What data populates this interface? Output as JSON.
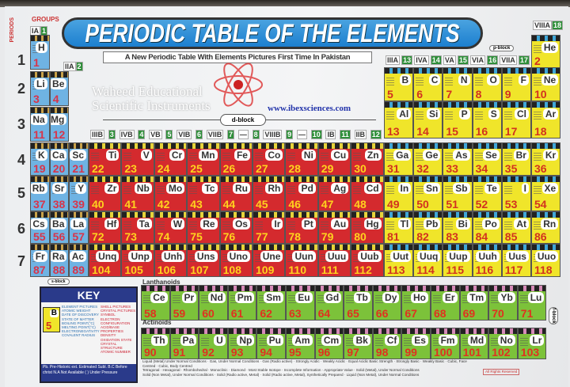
{
  "title": "PERIODIC TABLE OF THE ELEMENTS",
  "subtitle": "A New Periodic Table With Elements Pictures First Time In Pakistan",
  "watermark": [
    "Waheed Educational",
    "Scientific Instruments"
  ],
  "url": "www.ibexsciences.com",
  "labels": {
    "periods": "PERIODS",
    "groups": "GROUPS",
    "d_block": "d-block",
    "p_block": "p-block",
    "s_block": "s-block",
    "f_block": "f-block",
    "lanthanoids": "Lanthanoids",
    "actinoids": "Actinoids"
  },
  "period_numbers": [
    "1",
    "2",
    "3",
    "4",
    "5",
    "6",
    "7"
  ],
  "group_headers_left": [
    {
      "roman": "IA",
      "num": "1"
    },
    {
      "roman": "IIA",
      "num": "2"
    }
  ],
  "group_headers_d": [
    "IIIB",
    "3",
    "IVB",
    "4",
    "VB",
    "5",
    "VIB",
    "6",
    "VIIB",
    "7",
    "—",
    "8",
    "VIIIB",
    "9",
    "—",
    "10",
    "IB",
    "11",
    "IIB",
    "12"
  ],
  "group_headers_p": [
    "IIIA",
    "13",
    "IVA",
    "14",
    "VA",
    "15",
    "VIA",
    "16",
    "VIIA",
    "17"
  ],
  "group_header_noble": {
    "roman": "VIIIA",
    "num": "18"
  },
  "s_block": [
    [
      {
        "s": "H",
        "n": 1
      }
    ],
    [
      {
        "s": "Li",
        "n": 3
      },
      {
        "s": "Be",
        "n": 4
      }
    ],
    [
      {
        "s": "Na",
        "n": 11
      },
      {
        "s": "Mg",
        "n": 12
      }
    ],
    [
      {
        "s": "K",
        "n": 19
      },
      {
        "s": "Ca",
        "n": 20
      },
      {
        "s": "Sc",
        "n": 21
      }
    ],
    [
      {
        "s": "Rb",
        "n": 37
      },
      {
        "s": "Sr",
        "n": 38
      },
      {
        "s": "Y",
        "n": 39
      }
    ],
    [
      {
        "s": "Cs",
        "n": 55
      },
      {
        "s": "Ba",
        "n": 56
      },
      {
        "s": "La",
        "n": 57
      }
    ],
    [
      {
        "s": "Fr",
        "n": 87
      },
      {
        "s": "Ra",
        "n": 88
      },
      {
        "s": "Ac",
        "n": 89
      }
    ]
  ],
  "d_block": [
    [
      {
        "s": "Ti",
        "n": 22
      },
      {
        "s": "V",
        "n": 23
      },
      {
        "s": "Cr",
        "n": 24
      },
      {
        "s": "Mn",
        "n": 25
      },
      {
        "s": "Fe",
        "n": 26
      },
      {
        "s": "Co",
        "n": 27
      },
      {
        "s": "Ni",
        "n": 28
      },
      {
        "s": "Cu",
        "n": 29
      },
      {
        "s": "Zn",
        "n": 30
      }
    ],
    [
      {
        "s": "Zr",
        "n": 40
      },
      {
        "s": "Nb",
        "n": 41
      },
      {
        "s": "Mo",
        "n": 42
      },
      {
        "s": "Tc",
        "n": 43
      },
      {
        "s": "Ru",
        "n": 44
      },
      {
        "s": "Rh",
        "n": 45
      },
      {
        "s": "Pd",
        "n": 46
      },
      {
        "s": "Ag",
        "n": 47
      },
      {
        "s": "Cd",
        "n": 48
      }
    ],
    [
      {
        "s": "Hf",
        "n": 72
      },
      {
        "s": "Ta",
        "n": 73
      },
      {
        "s": "W",
        "n": 74
      },
      {
        "s": "Re",
        "n": 75
      },
      {
        "s": "Os",
        "n": 76
      },
      {
        "s": "Ir",
        "n": 77
      },
      {
        "s": "Pt",
        "n": 78
      },
      {
        "s": "Au",
        "n": 79
      },
      {
        "s": "Hg",
        "n": 80
      }
    ],
    [
      {
        "s": "Unq",
        "n": 104
      },
      {
        "s": "Unp",
        "n": 105
      },
      {
        "s": "Unh",
        "n": 106
      },
      {
        "s": "Uns",
        "n": 107
      },
      {
        "s": "Uno",
        "n": 108
      },
      {
        "s": "Une",
        "n": 109
      },
      {
        "s": "Uun",
        "n": 110
      },
      {
        "s": "Uuu",
        "n": 111
      },
      {
        "s": "Uub",
        "n": 112
      }
    ]
  ],
  "p_block": [
    [
      {
        "s": "He",
        "n": 2
      }
    ],
    [
      {
        "s": "B",
        "n": 5
      },
      {
        "s": "C",
        "n": 6
      },
      {
        "s": "N",
        "n": 7
      },
      {
        "s": "O",
        "n": 8
      },
      {
        "s": "F",
        "n": 9
      },
      {
        "s": "Ne",
        "n": 10
      }
    ],
    [
      {
        "s": "Al",
        "n": 13
      },
      {
        "s": "Si",
        "n": 14
      },
      {
        "s": "P",
        "n": 15
      },
      {
        "s": "S",
        "n": 16
      },
      {
        "s": "Cl",
        "n": 17
      },
      {
        "s": "Ar",
        "n": 18
      }
    ],
    [
      {
        "s": "Ga",
        "n": 31
      },
      {
        "s": "Ge",
        "n": 32
      },
      {
        "s": "As",
        "n": 33
      },
      {
        "s": "Se",
        "n": 34
      },
      {
        "s": "Br",
        "n": 35
      },
      {
        "s": "Kr",
        "n": 36
      }
    ],
    [
      {
        "s": "In",
        "n": 49
      },
      {
        "s": "Sn",
        "n": 50
      },
      {
        "s": "Sb",
        "n": 51
      },
      {
        "s": "Te",
        "n": 52
      },
      {
        "s": "I",
        "n": 53
      },
      {
        "s": "Xe",
        "n": 54
      }
    ],
    [
      {
        "s": "Tl",
        "n": 81
      },
      {
        "s": "Pb",
        "n": 82
      },
      {
        "s": "Bi",
        "n": 83
      },
      {
        "s": "Po",
        "n": 84
      },
      {
        "s": "At",
        "n": 85
      },
      {
        "s": "Rn",
        "n": 86
      }
    ],
    [
      {
        "s": "Uut",
        "n": 113
      },
      {
        "s": "Uuq",
        "n": 114
      },
      {
        "s": "Uup",
        "n": 115
      },
      {
        "s": "Uuh",
        "n": 116
      },
      {
        "s": "Uus",
        "n": 117
      },
      {
        "s": "Uuo",
        "n": 118
      }
    ]
  ],
  "f_block": [
    [
      {
        "s": "Ce",
        "n": 58
      },
      {
        "s": "Pr",
        "n": 59
      },
      {
        "s": "Nd",
        "n": 60
      },
      {
        "s": "Pm",
        "n": 61
      },
      {
        "s": "Sm",
        "n": 62
      },
      {
        "s": "Eu",
        "n": 63
      },
      {
        "s": "Gd",
        "n": 64
      },
      {
        "s": "Tb",
        "n": 65
      },
      {
        "s": "Dy",
        "n": 66
      },
      {
        "s": "Ho",
        "n": 67
      },
      {
        "s": "Er",
        "n": 68
      },
      {
        "s": "Tm",
        "n": 69
      },
      {
        "s": "Yb",
        "n": 70
      },
      {
        "s": "Lu",
        "n": 71
      }
    ],
    [
      {
        "s": "Th",
        "n": 90
      },
      {
        "s": "Pa",
        "n": 91
      },
      {
        "s": "U",
        "n": 92
      },
      {
        "s": "Np",
        "n": 93
      },
      {
        "s": "Pu",
        "n": 94
      },
      {
        "s": "Am",
        "n": 95
      },
      {
        "s": "Cm",
        "n": 96
      },
      {
        "s": "Bk",
        "n": 97
      },
      {
        "s": "Cf",
        "n": 98
      },
      {
        "s": "Es",
        "n": 99
      },
      {
        "s": "Fm",
        "n": 100
      },
      {
        "s": "Md",
        "n": 101
      },
      {
        "s": "No",
        "n": 102
      },
      {
        "s": "Lr",
        "n": 103
      }
    ]
  ],
  "key": {
    "title": "KEY",
    "sample_symbol": "B",
    "sample_number": "5",
    "left_labels": [
      "ELEMENT PICTURES",
      "ATOMIC WEIGHT",
      "DATE OF DISCOVERY",
      "STATE OF MATTER",
      "BOILING POINT(°C)",
      "MELTING POINT(°C)",
      "ELECTRONEGATIVITY",
      "COVALENT RADIUS"
    ],
    "right_labels": [
      "SHELL PICTURES",
      "CRYSTAL PICTURES",
      "SYMBOL",
      "ELECTRON CONFIGURATION",
      "ACID/BASE PROPERTIES",
      "DENSITY",
      "OXIDATION STATE",
      "CRYSTAL STRUCTURE",
      "ATOMIC NUMBER"
    ],
    "footer": "Pb. Pre-Historic ext. Estimated Subl. B.C Before christ N.A Not Available ( ) Under Pressure"
  },
  "footnotes": [
    "Liquid (Metal) Under Normal Conditions · Gas, Under Normal Conditions · Gas (Radio active) · Strongly Acidic · Weakly Acidic · Equal Acidic Basic Strength · Strongly Basic · Weakly Basic · Cubic, Face Centred · Cubic, Body Centred",
    "Tetragonal · Hexagonal · Rhombohedral · Monoclinic · Diamond · Most Stable Isotope · Incomplete Information · Appropriate Value · Solid (Metal), Under Normal Conditions",
    "Solid (Non Metal), Under Normal Conditions · Solid (Radio active, Metal) · Solid (Radio active, Metal), Synthetically Prepared · Liquid (Non Metal), Under Normal Conditions"
  ],
  "rights": "All Rights Reserved"
}
